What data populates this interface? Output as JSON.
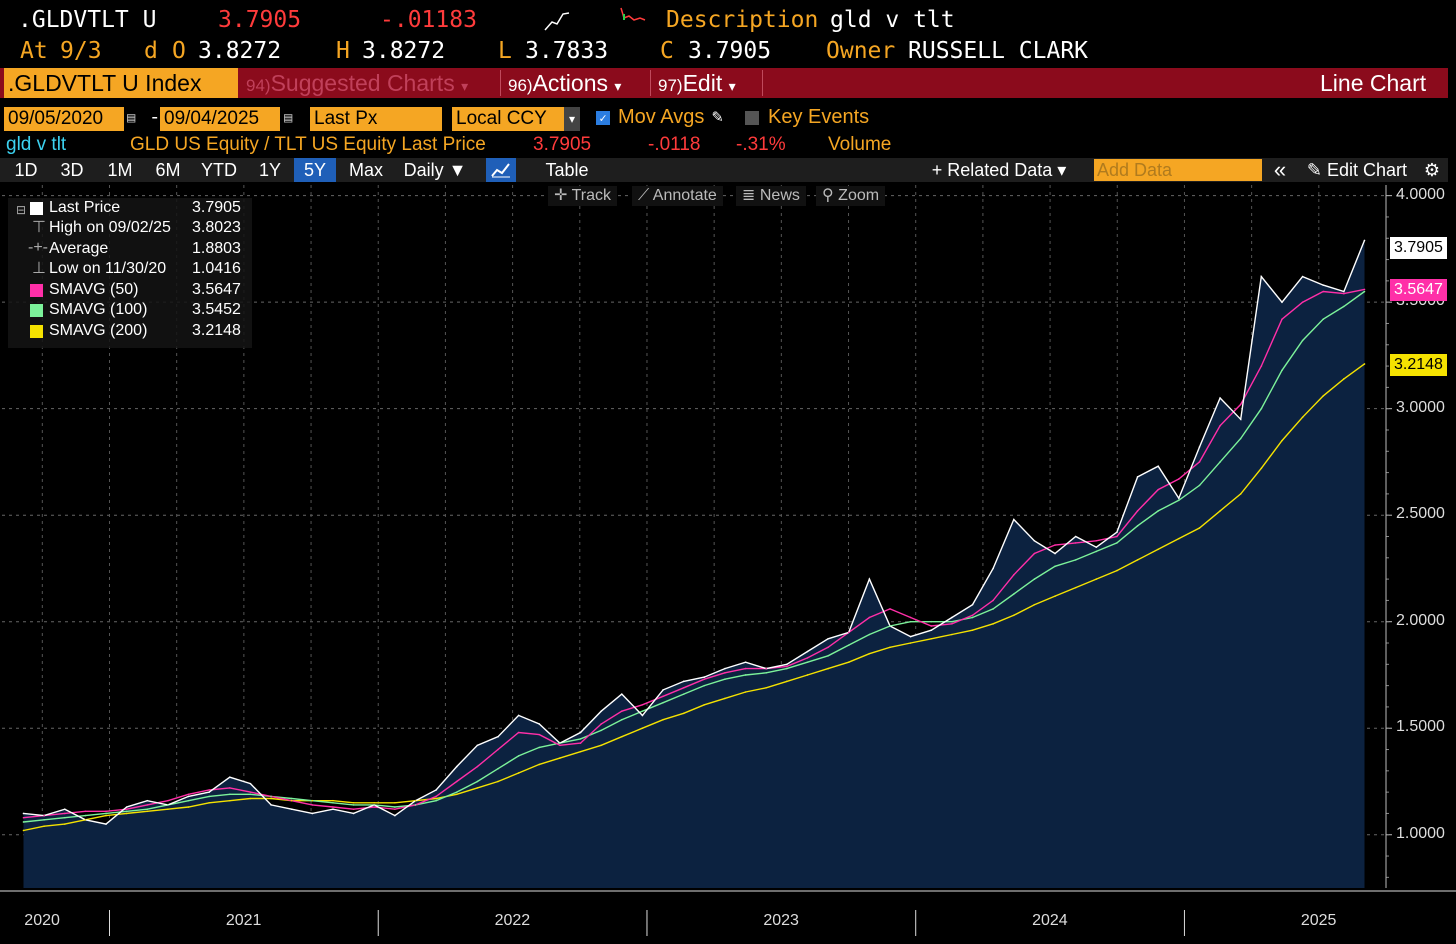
{
  "header": {
    "ticker": ".GLDVTLT U",
    "last": "3.7905",
    "change": "-.01183",
    "desc_label": "Description",
    "desc_value": "gld v tlt",
    "at_label": "At",
    "at_date": "9/3",
    "d_label": "d",
    "o_label": "O",
    "o_value": "3.8272",
    "h_label": "H",
    "h_value": "3.8272",
    "l_label": "L",
    "l_value": "3.7833",
    "c_label": "C",
    "c_value": "3.7905",
    "owner_label": "Owner",
    "owner_value": "RUSSELL CLARK"
  },
  "menubar": {
    "index_label": ".GLDVTLT U Index",
    "suggested_num": "94)",
    "suggested_label": "Suggested Charts",
    "actions_num": "96)",
    "actions_label": "Actions",
    "edit_num": "97)",
    "edit_label": "Edit",
    "chart_type": "Line Chart"
  },
  "controls": {
    "start_date": "09/05/2020",
    "dash": "-",
    "end_date": "09/04/2025",
    "field": "Last Px",
    "currency": "Local CCY",
    "mov_avgs": "Mov Avgs",
    "key_events": "Key Events"
  },
  "security": {
    "short": "gld v tlt",
    "desc": "GLD US Equity / TLT US Equity Last Price",
    "price": "3.7905",
    "chg": "-.0118",
    "pct": "-.31%",
    "volume": "Volume"
  },
  "tabs": {
    "t1d": "1D",
    "t3d": "3D",
    "t1m": "1M",
    "t6m": "6M",
    "tytd": "YTD",
    "t1y": "1Y",
    "t5y": "5Y",
    "tmax": "Max",
    "daily": "Daily ▼",
    "table": "Table",
    "related": "+ Related Data ▾",
    "add_data": "Add Data",
    "collapse": "«",
    "edit_chart": "Edit Chart",
    "gear": "⚙"
  },
  "tools": {
    "track": "Track",
    "annotate": "Annotate",
    "news": "News",
    "zoom": "Zoom"
  },
  "legend": {
    "last_label": "Last Price",
    "last_value": "3.7905",
    "high_label": "High on 09/02/25",
    "high_value": "3.8023",
    "avg_label": "Average",
    "avg_value": "1.8803",
    "low_label": "Low on 11/30/20",
    "low_value": "1.0416",
    "sma50_label": "SMAVG (50)",
    "sma50_value": "3.5647",
    "sma100_label": "SMAVG (100)",
    "sma100_value": "3.5452",
    "sma200_label": "SMAVG (200)",
    "sma200_value": "3.2148"
  },
  "colors": {
    "price": "#ffffff",
    "sma50": "#ff2fa8",
    "sma100": "#7cf29a",
    "sma200": "#f5e200",
    "area": "#0c2240",
    "bloomberg_orange": "#f5a623",
    "menubar_red": "#8b0b1c"
  },
  "chart_data": {
    "type": "line",
    "title": "gld v tlt",
    "x_start": 2020.68,
    "x_end": 2025.67,
    "xlim": [
      2020.6,
      2025.75
    ],
    "ylim": [
      0.75,
      4.05
    ],
    "yticks": [
      1.0,
      1.5,
      2.0,
      2.5,
      3.0,
      3.5,
      4.0
    ],
    "ytick_labels": [
      "1.0000",
      "1.5000",
      "2.0000",
      "2.5000",
      "3.0000",
      "3.5000",
      "4.0000"
    ],
    "xlabels": [
      "2020",
      "2021",
      "2022",
      "2023",
      "2024",
      "2025"
    ],
    "xlabel_pos": [
      2020.75,
      2021.5,
      2022.5,
      2023.5,
      2024.5,
      2025.5
    ],
    "year_bounds": [
      2021.0,
      2022.0,
      2023.0,
      2024.0,
      2025.0
    ],
    "series": [
      {
        "name": "Last Price",
        "values": [
          1.1,
          1.09,
          1.12,
          1.07,
          1.05,
          1.13,
          1.16,
          1.14,
          1.18,
          1.2,
          1.27,
          1.24,
          1.14,
          1.12,
          1.1,
          1.12,
          1.1,
          1.14,
          1.09,
          1.16,
          1.21,
          1.32,
          1.42,
          1.46,
          1.56,
          1.52,
          1.43,
          1.48,
          1.58,
          1.66,
          1.56,
          1.68,
          1.72,
          1.74,
          1.78,
          1.81,
          1.78,
          1.8,
          1.86,
          1.92,
          1.95,
          2.2,
          1.98,
          1.93,
          1.96,
          2.02,
          2.08,
          2.25,
          2.48,
          2.38,
          2.32,
          2.4,
          2.35,
          2.42,
          2.68,
          2.73,
          2.58,
          2.82,
          3.05,
          2.95,
          3.62,
          3.5,
          3.62,
          3.58,
          3.55,
          3.79
        ]
      },
      {
        "name": "SMAVG (50)",
        "values": [
          1.08,
          1.09,
          1.1,
          1.11,
          1.11,
          1.12,
          1.14,
          1.16,
          1.19,
          1.21,
          1.22,
          1.2,
          1.18,
          1.16,
          1.14,
          1.13,
          1.12,
          1.13,
          1.12,
          1.14,
          1.18,
          1.25,
          1.32,
          1.4,
          1.48,
          1.47,
          1.42,
          1.43,
          1.52,
          1.58,
          1.61,
          1.65,
          1.69,
          1.73,
          1.76,
          1.78,
          1.78,
          1.79,
          1.83,
          1.88,
          1.95,
          2.02,
          2.06,
          2.02,
          1.98,
          1.99,
          2.03,
          2.1,
          2.22,
          2.32,
          2.36,
          2.37,
          2.38,
          2.4,
          2.52,
          2.62,
          2.67,
          2.75,
          2.92,
          3.02,
          3.2,
          3.42,
          3.5,
          3.55,
          3.54,
          3.56
        ]
      },
      {
        "name": "SMAVG (100)",
        "values": [
          1.06,
          1.07,
          1.08,
          1.09,
          1.1,
          1.11,
          1.12,
          1.14,
          1.16,
          1.18,
          1.19,
          1.19,
          1.18,
          1.17,
          1.16,
          1.15,
          1.14,
          1.14,
          1.13,
          1.14,
          1.16,
          1.2,
          1.25,
          1.31,
          1.37,
          1.41,
          1.43,
          1.45,
          1.49,
          1.54,
          1.58,
          1.62,
          1.66,
          1.7,
          1.73,
          1.75,
          1.76,
          1.78,
          1.81,
          1.84,
          1.89,
          1.94,
          1.98,
          2.0,
          2.0,
          2.0,
          2.02,
          2.06,
          2.13,
          2.2,
          2.26,
          2.29,
          2.33,
          2.37,
          2.45,
          2.52,
          2.57,
          2.64,
          2.75,
          2.86,
          3.0,
          3.18,
          3.32,
          3.42,
          3.48,
          3.55
        ]
      },
      {
        "name": "SMAVG (200)",
        "values": [
          1.02,
          1.04,
          1.05,
          1.07,
          1.09,
          1.1,
          1.11,
          1.12,
          1.13,
          1.15,
          1.16,
          1.17,
          1.17,
          1.16,
          1.16,
          1.16,
          1.15,
          1.15,
          1.15,
          1.16,
          1.17,
          1.19,
          1.22,
          1.25,
          1.29,
          1.33,
          1.36,
          1.39,
          1.42,
          1.46,
          1.5,
          1.54,
          1.57,
          1.61,
          1.64,
          1.67,
          1.69,
          1.72,
          1.75,
          1.78,
          1.81,
          1.85,
          1.88,
          1.9,
          1.92,
          1.94,
          1.96,
          1.99,
          2.03,
          2.08,
          2.12,
          2.16,
          2.2,
          2.24,
          2.29,
          2.34,
          2.39,
          2.44,
          2.52,
          2.6,
          2.72,
          2.85,
          2.96,
          3.06,
          3.14,
          3.21
        ]
      }
    ]
  }
}
